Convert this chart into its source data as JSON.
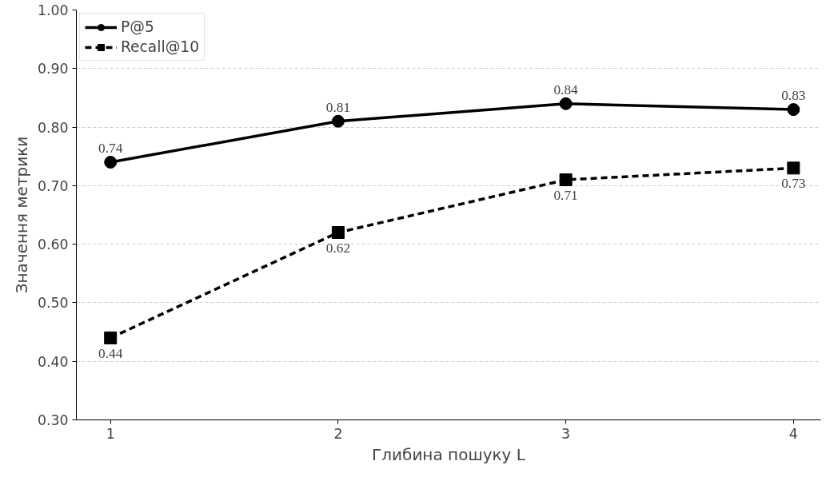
{
  "chart_data": {
    "type": "line",
    "xlabel": "Глибина пошуку L",
    "ylabel": "Значення метрики",
    "x": [
      1,
      2,
      3,
      4
    ],
    "series": [
      {
        "name": "P@5",
        "color": "#000000",
        "values": [
          0.74,
          0.81,
          0.84,
          0.83
        ],
        "marker": "circle",
        "line_style": "solid"
      },
      {
        "name": "Recall@10",
        "color": "#000000",
        "values": [
          0.44,
          0.62,
          0.71,
          0.73
        ],
        "marker": "square",
        "line_style": "dashed"
      }
    ],
    "xlim": [
      0.85,
      4.12
    ],
    "xticks": [
      1,
      2,
      3,
      4
    ],
    "ylim": [
      0.3,
      1.0
    ],
    "yticks": [
      {
        "value": 0.3,
        "label": "0.30"
      },
      {
        "value": 0.4,
        "label": "0.40"
      },
      {
        "value": 0.5,
        "label": "0.50"
      },
      {
        "value": 0.6,
        "label": "0.60"
      },
      {
        "value": 0.7,
        "label": "0.70"
      },
      {
        "value": 0.8,
        "label": "0.80"
      },
      {
        "value": 0.9,
        "label": "0.90"
      },
      {
        "value": 1.0,
        "label": "1.00"
      }
    ],
    "grid": "y",
    "legend": "top left",
    "data_labels": true
  }
}
